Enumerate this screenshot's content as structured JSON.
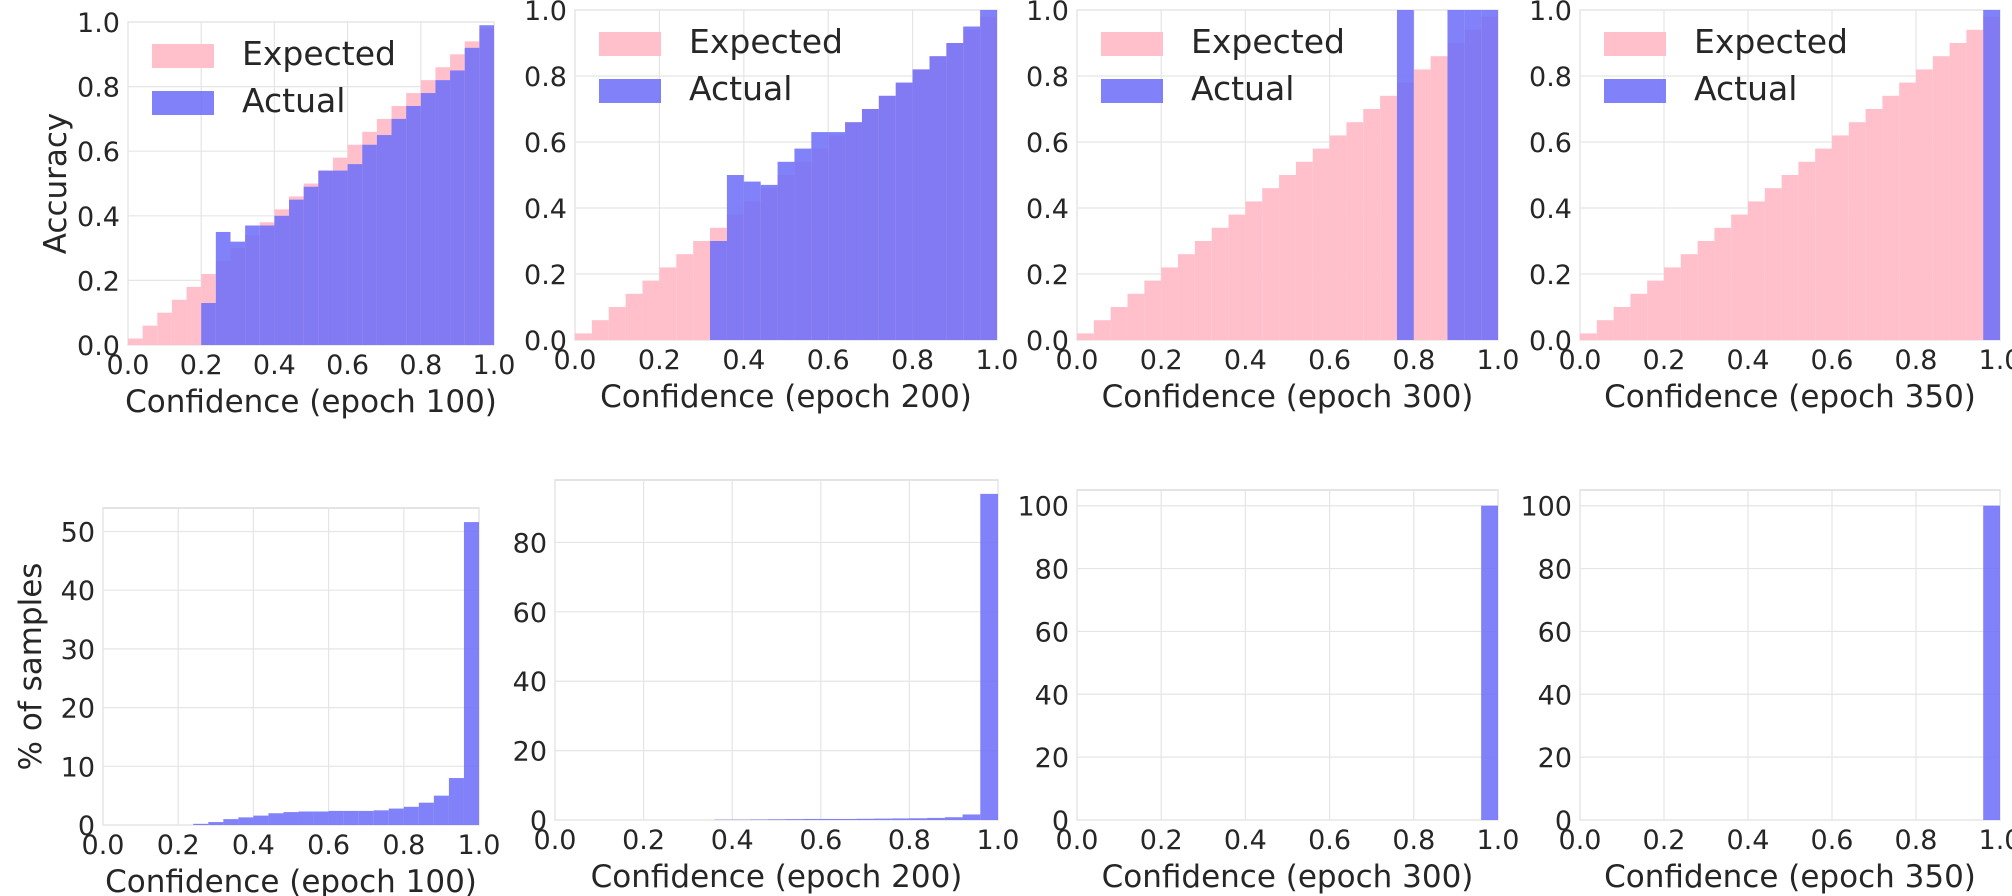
{
  "colors": {
    "expected": "#ffc0cb",
    "actual": "#6f6ff8",
    "grid": "#e5e5e5",
    "frame": "#d3d3d3"
  },
  "chart_data": [
    {
      "type": "bar",
      "title": "",
      "xlabel": "Confidence (epoch 100)",
      "ylabel": "Accuracy",
      "xlim": [
        0,
        1
      ],
      "ylim": [
        0,
        1
      ],
      "grid": true,
      "legend": "upper-left",
      "xticks": [
        "0.0",
        "0.2",
        "0.4",
        "0.6",
        "0.8",
        "1.0"
      ],
      "yticks": [
        "0.0",
        "0.2",
        "0.4",
        "0.6",
        "0.8",
        "1.0"
      ],
      "bins": 25,
      "series": [
        {
          "name": "Expected",
          "values": [
            0.02,
            0.06,
            0.1,
            0.14,
            0.18,
            0.22,
            0.26,
            0.3,
            0.34,
            0.38,
            0.42,
            0.46,
            0.5,
            0.54,
            0.58,
            0.62,
            0.66,
            0.7,
            0.74,
            0.78,
            0.82,
            0.86,
            0.9,
            0.94,
            0.98
          ]
        },
        {
          "name": "Actual",
          "values": [
            0,
            0,
            0,
            0,
            0,
            0.13,
            0.35,
            0.32,
            0.37,
            0.37,
            0.4,
            0.45,
            0.49,
            0.54,
            0.54,
            0.56,
            0.62,
            0.65,
            0.7,
            0.74,
            0.78,
            0.82,
            0.85,
            0.92,
            0.99
          ]
        }
      ]
    },
    {
      "type": "bar",
      "title": "",
      "xlabel": "Confidence (epoch 200)",
      "ylabel": "",
      "xlim": [
        0,
        1
      ],
      "ylim": [
        0,
        1
      ],
      "grid": true,
      "legend": "upper-left",
      "xticks": [
        "0.0",
        "0.2",
        "0.4",
        "0.6",
        "0.8",
        "1.0"
      ],
      "yticks": [
        "0.0",
        "0.2",
        "0.4",
        "0.6",
        "0.8",
        "1.0"
      ],
      "bins": 25,
      "series": [
        {
          "name": "Expected",
          "values": [
            0.02,
            0.06,
            0.1,
            0.14,
            0.18,
            0.22,
            0.26,
            0.3,
            0.34,
            0.38,
            0.42,
            0.46,
            0.5,
            0.54,
            0.58,
            0.62,
            0.66,
            0.7,
            0.74,
            0.78,
            0.82,
            0.86,
            0.9,
            0.94,
            0.98
          ]
        },
        {
          "name": "Actual",
          "values": [
            0,
            0,
            0,
            0,
            0,
            0,
            0,
            0,
            0.3,
            0.5,
            0.48,
            0.47,
            0.54,
            0.58,
            0.63,
            0.63,
            0.66,
            0.7,
            0.74,
            0.78,
            0.82,
            0.86,
            0.9,
            0.95,
            1.0
          ]
        }
      ]
    },
    {
      "type": "bar",
      "title": "",
      "xlabel": "Confidence (epoch 300)",
      "ylabel": "",
      "xlim": [
        0,
        1
      ],
      "ylim": [
        0,
        1
      ],
      "grid": true,
      "legend": "upper-left",
      "xticks": [
        "0.0",
        "0.2",
        "0.4",
        "0.6",
        "0.8",
        "1.0"
      ],
      "yticks": [
        "0.0",
        "0.2",
        "0.4",
        "0.6",
        "0.8",
        "1.0"
      ],
      "bins": 25,
      "series": [
        {
          "name": "Expected",
          "values": [
            0.02,
            0.06,
            0.1,
            0.14,
            0.18,
            0.22,
            0.26,
            0.3,
            0.34,
            0.38,
            0.42,
            0.46,
            0.5,
            0.54,
            0.58,
            0.62,
            0.66,
            0.7,
            0.74,
            0.78,
            0.82,
            0.86,
            0.9,
            0.94,
            0.98
          ]
        },
        {
          "name": "Actual",
          "values": [
            0,
            0,
            0,
            0,
            0,
            0,
            0,
            0,
            0,
            0,
            0,
            0,
            0,
            0,
            0,
            0,
            0,
            0,
            0,
            1.0,
            0,
            0,
            1.0,
            1.0,
            1.0
          ]
        }
      ]
    },
    {
      "type": "bar",
      "title": "",
      "xlabel": "Confidence (epoch 350)",
      "ylabel": "",
      "xlim": [
        0,
        1
      ],
      "ylim": [
        0,
        1
      ],
      "grid": true,
      "legend": "upper-left",
      "xticks": [
        "0.0",
        "0.2",
        "0.4",
        "0.6",
        "0.8",
        "1.0"
      ],
      "yticks": [
        "0.0",
        "0.2",
        "0.4",
        "0.6",
        "0.8",
        "1.0"
      ],
      "bins": 25,
      "series": [
        {
          "name": "Expected",
          "values": [
            0.02,
            0.06,
            0.1,
            0.14,
            0.18,
            0.22,
            0.26,
            0.3,
            0.34,
            0.38,
            0.42,
            0.46,
            0.5,
            0.54,
            0.58,
            0.62,
            0.66,
            0.7,
            0.74,
            0.78,
            0.82,
            0.86,
            0.9,
            0.94,
            0.98
          ]
        },
        {
          "name": "Actual",
          "values": [
            0,
            0,
            0,
            0,
            0,
            0,
            0,
            0,
            0,
            0,
            0,
            0,
            0,
            0,
            0,
            0,
            0,
            0,
            0,
            0,
            0,
            0,
            0,
            0,
            1.0
          ]
        }
      ]
    },
    {
      "type": "bar",
      "title": "",
      "xlabel": "Confidence (epoch 100)",
      "ylabel": "% of samples",
      "xlim": [
        0,
        1
      ],
      "ylim": [
        0,
        54
      ],
      "grid": true,
      "xticks": [
        "0.0",
        "0.2",
        "0.4",
        "0.6",
        "0.8",
        "1.0"
      ],
      "yticks": [
        "0",
        "10",
        "20",
        "30",
        "40",
        "50"
      ],
      "bins": 25,
      "series": [
        {
          "values": [
            0,
            0,
            0,
            0,
            0,
            0,
            0.2,
            0.5,
            1.0,
            1.3,
            1.6,
            2.0,
            2.2,
            2.3,
            2.3,
            2.4,
            2.4,
            2.4,
            2.5,
            2.8,
            3.1,
            3.8,
            5.0,
            8.0,
            51.6
          ]
        }
      ]
    },
    {
      "type": "bar",
      "title": "",
      "xlabel": "Confidence (epoch 200)",
      "ylabel": "",
      "xlim": [
        0,
        1
      ],
      "ylim": [
        0,
        98
      ],
      "grid": true,
      "xticks": [
        "0.0",
        "0.2",
        "0.4",
        "0.6",
        "0.8",
        "1.0"
      ],
      "yticks": [
        "0",
        "20",
        "40",
        "60",
        "80"
      ],
      "bins": 25,
      "series": [
        {
          "values": [
            0,
            0,
            0,
            0,
            0,
            0,
            0,
            0,
            0,
            0.1,
            0.1,
            0.15,
            0.2,
            0.25,
            0.3,
            0.3,
            0.3,
            0.35,
            0.4,
            0.45,
            0.5,
            0.6,
            0.8,
            1.6,
            94.0
          ]
        }
      ]
    },
    {
      "type": "bar",
      "title": "",
      "xlabel": "Confidence (epoch 300)",
      "ylabel": "",
      "xlim": [
        0,
        1
      ],
      "ylim": [
        0,
        105
      ],
      "grid": true,
      "xticks": [
        "0.0",
        "0.2",
        "0.4",
        "0.6",
        "0.8",
        "1.0"
      ],
      "yticks": [
        "0",
        "20",
        "40",
        "60",
        "80",
        "100"
      ],
      "bins": 25,
      "series": [
        {
          "values": [
            0,
            0,
            0,
            0,
            0,
            0,
            0,
            0,
            0,
            0,
            0,
            0,
            0,
            0,
            0,
            0,
            0,
            0,
            0,
            0,
            0,
            0,
            0,
            0,
            100
          ]
        }
      ]
    },
    {
      "type": "bar",
      "title": "",
      "xlabel": "Confidence (epoch 350)",
      "ylabel": "",
      "xlim": [
        0,
        1
      ],
      "ylim": [
        0,
        105
      ],
      "grid": true,
      "xticks": [
        "0.0",
        "0.2",
        "0.4",
        "0.6",
        "0.8",
        "1.0"
      ],
      "yticks": [
        "0",
        "20",
        "40",
        "60",
        "80",
        "100"
      ],
      "bins": 25,
      "series": [
        {
          "values": [
            0,
            0,
            0,
            0,
            0,
            0,
            0,
            0,
            0,
            0,
            0,
            0,
            0,
            0,
            0,
            0,
            0,
            0,
            0,
            0,
            0,
            0,
            0,
            0,
            100
          ]
        }
      ]
    }
  ]
}
